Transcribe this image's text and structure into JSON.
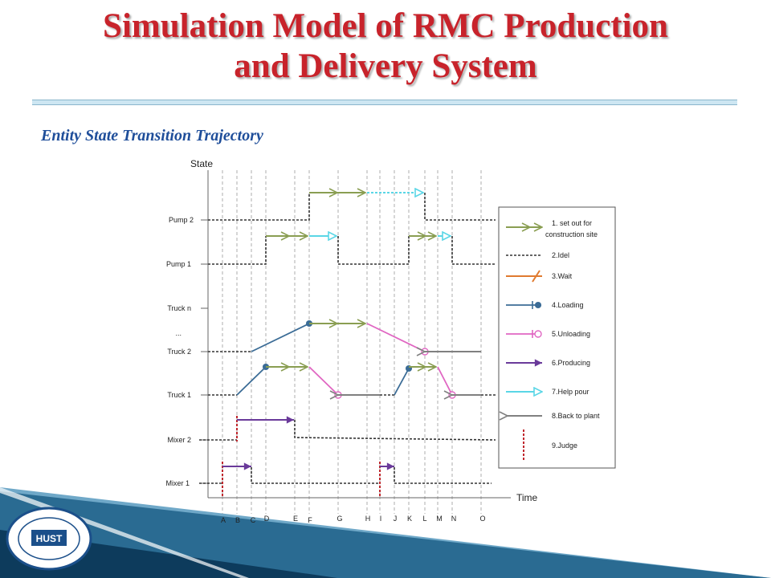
{
  "title": {
    "line1": "Simulation Model of RMC Production",
    "line2": "and Delivery System"
  },
  "subtitle": "Entity State Transition Trajectory",
  "diagram": {
    "y_axis_label": "State",
    "x_axis_label": "Time",
    "states": [
      "Pump 2",
      "Pump 1",
      "Truck n",
      "...",
      "Truck 2",
      "Truck 1",
      "Mixer 2",
      "Mixer 1"
    ],
    "time_ticks": [
      "A",
      "B",
      "C",
      "D",
      "E",
      "F",
      "G",
      "H",
      "I",
      "J",
      "K",
      "L",
      "M",
      "N",
      "O"
    ],
    "legend": [
      {
        "label": "1. set out for",
        "label2": "construction site",
        "color": "#8a9e52"
      },
      {
        "label": "2.Idel",
        "color": "#333333"
      },
      {
        "label": "3.Wait",
        "color": "#e07a2f"
      },
      {
        "label": "4.Loading",
        "color": "#3b6c96"
      },
      {
        "label": "5.Unloading",
        "color": "#e066c2"
      },
      {
        "label": "6.Producing",
        "color": "#6a3a9a"
      },
      {
        "label": "7.Help pour",
        "color": "#5ad6e6"
      },
      {
        "label": "8.Back to plant",
        "color": "#808080"
      },
      {
        "label": "9.Judge",
        "color": "#c0282e"
      }
    ]
  },
  "logo": {
    "text": "HUST"
  }
}
